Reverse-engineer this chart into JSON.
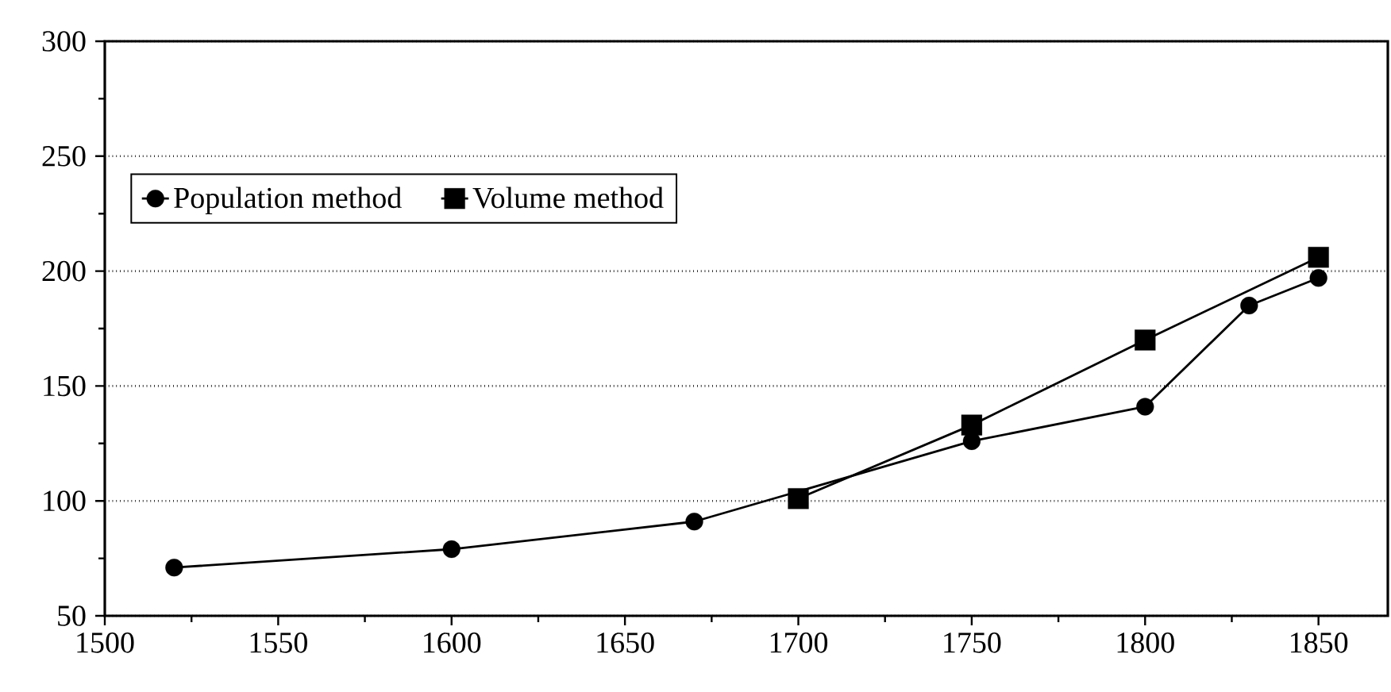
{
  "chart_data": {
    "type": "line",
    "series": [
      {
        "name": "Population method",
        "color": "#000000",
        "marker": "circle",
        "x": [
          1520,
          1600,
          1670,
          1750,
          1800,
          1830,
          1850
        ],
        "values": [
          71,
          79,
          91,
          126,
          141,
          185,
          197
        ]
      },
      {
        "name": "Volume method",
        "color": "#000000",
        "marker": "square",
        "x": [
          1700,
          1750,
          1800,
          1850
        ],
        "values": [
          101,
          133,
          170,
          206
        ]
      }
    ],
    "xlim": [
      1500,
      1870
    ],
    "xticks": [
      1500,
      1550,
      1600,
      1650,
      1700,
      1750,
      1800,
      1850
    ],
    "ylim": [
      50,
      300
    ],
    "yticks": [
      50,
      100,
      150,
      200,
      250,
      300
    ],
    "grid": "y",
    "legend": "top left",
    "line_style": "solid"
  }
}
